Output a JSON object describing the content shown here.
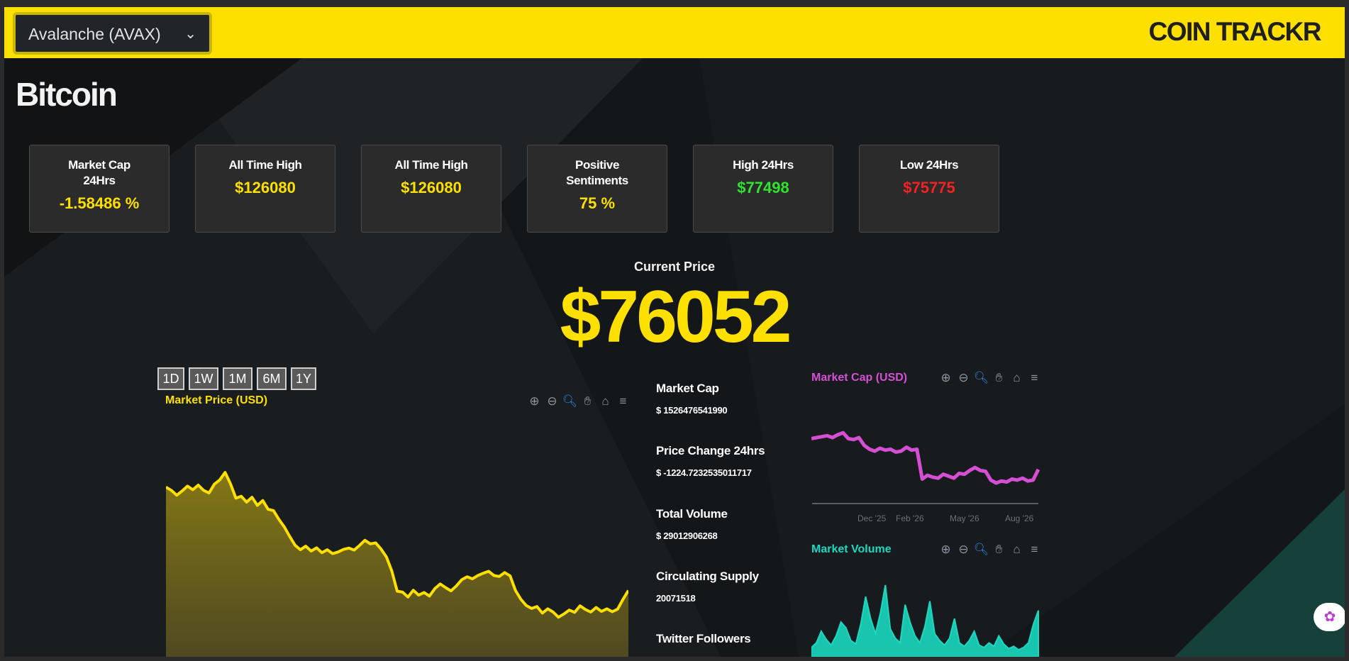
{
  "header": {
    "coin_select_value": "Avalanche (AVAX)",
    "brand": "COIN TRACKR"
  },
  "coin_name": "Bitcoin",
  "cards": [
    {
      "label": "Market Cap 24Hrs",
      "value": "-1.58486 %",
      "color": "#fde000"
    },
    {
      "label": "All Time High",
      "value": "$126080",
      "color": "#fde000"
    },
    {
      "label": "All Time High",
      "value": "$126080",
      "color": "#fde000"
    },
    {
      "label": "Positive Sentiments",
      "value": "75 %",
      "color": "#fde000"
    },
    {
      "label": "High 24Hrs",
      "value": "$77498",
      "color": "#2ee42e"
    },
    {
      "label": "Low 24Hrs",
      "value": "$75775",
      "color": "#f22222"
    }
  ],
  "current_price": {
    "label": "Current Price",
    "value": "$76052"
  },
  "range_buttons": [
    "1D",
    "1W",
    "1M",
    "6M",
    "1Y"
  ],
  "toolbar_icons": [
    "zoom-in-icon",
    "zoom-out-icon",
    "zoom-select-icon",
    "pan-hand-icon",
    "home-icon",
    "menu-icon"
  ],
  "stats": [
    {
      "label": "Market Cap",
      "value": "$ 1526476541990"
    },
    {
      "label": "Price Change 24hrs",
      "value": "$ -1224.7232535011717"
    },
    {
      "label": "Total Volume",
      "value": "$ 29012906268"
    },
    {
      "label": "Circulating Supply",
      "value": "20071518"
    },
    {
      "label": "Twitter Followers",
      "value": ""
    }
  ],
  "colors": {
    "accent": "#fde000",
    "market_cap_line": "#d54fd5",
    "volume_line": "#1bd8c0",
    "background": "#141719"
  },
  "chart_data": [
    {
      "type": "area",
      "title": "Market Price (USD)",
      "y_unit": "USD",
      "values": [
        112000,
        111000,
        109500,
        110800,
        112300,
        111200,
        112600,
        111000,
        110200,
        112900,
        114200,
        116500,
        113000,
        108600,
        109200,
        107400,
        108900,
        106400,
        107900,
        105200,
        104800,
        102100,
        99800,
        96900,
        94200,
        92800,
        93900,
        92400,
        93400,
        91900,
        92800,
        91600,
        92100,
        92900,
        93300,
        92700,
        94100,
        95700,
        94600,
        94900,
        93000,
        90600,
        86300,
        80100,
        79800,
        78300,
        80400,
        78900,
        79700,
        78600,
        80900,
        82300,
        81200,
        80200,
        81700,
        83600,
        84500,
        83900,
        84900,
        85600,
        86200,
        84900,
        84600,
        85800,
        84800,
        80300,
        77600,
        75700,
        74800,
        75400,
        73400,
        74700,
        73700,
        72100,
        73100,
        74300,
        73600,
        75600,
        74500,
        73700,
        75100,
        73900,
        74700,
        73800,
        74600,
        77600,
        80300
      ]
    },
    {
      "type": "line",
      "title": "Market Cap (USD)",
      "x_ticks": [
        "Dec '25",
        "Feb '26",
        "May '26",
        "Aug '26"
      ],
      "values": [
        2.2,
        2.21,
        2.22,
        2.23,
        2.21,
        2.24,
        2.26,
        2.2,
        2.19,
        2.21,
        2.13,
        2.09,
        2.07,
        2.1,
        2.08,
        2.09,
        2.06,
        2.07,
        2.11,
        2.08,
        2.09,
        1.78,
        1.82,
        1.8,
        1.79,
        1.83,
        1.81,
        1.79,
        1.84,
        1.83,
        1.87,
        1.9,
        1.87,
        1.86,
        1.77,
        1.74,
        1.76,
        1.75,
        1.78,
        1.77,
        1.79,
        1.76,
        1.77,
        1.88
      ]
    },
    {
      "type": "bar",
      "title": "Market Volume",
      "values": [
        8,
        12,
        22,
        15,
        10,
        18,
        30,
        25,
        14,
        11,
        28,
        52,
        33,
        20,
        38,
        62,
        24,
        16,
        12,
        45,
        30,
        18,
        12,
        26,
        48,
        20,
        14,
        10,
        16,
        33,
        12,
        9,
        14,
        22,
        10,
        8,
        12,
        9,
        18,
        11,
        7,
        9,
        6,
        8,
        12,
        28,
        40
      ]
    }
  ]
}
